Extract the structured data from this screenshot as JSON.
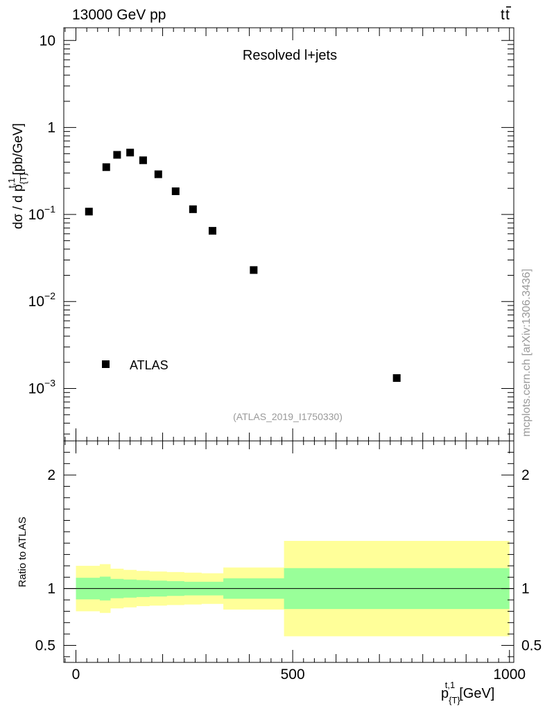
{
  "header": {
    "energy_label": "13000 GeV pp",
    "process_base": "t",
    "process_bar": "t"
  },
  "colors": {
    "band_outer": "#ffff99",
    "band_inner": "#99ff99",
    "marker": "#000000",
    "watermark": "#999999"
  },
  "chart_data": {
    "type": "scatter",
    "title": "Resolved l+jets",
    "analysis_id": "(ATLAS_2019_I1750330)",
    "side_text": "mcplots.cern.ch [arXiv:1306.3436]",
    "xlabel": {
      "base": "p",
      "sup": "t,1",
      "sub": "{T}",
      "unit": "[GeV]"
    },
    "ylabel": {
      "prefix": "dσ / d p",
      "sup": "t,1",
      "sub": "{T}",
      "unit": "[pb/GeV]"
    },
    "xlim": [
      -28,
      1010
    ],
    "x_ticks": [
      0,
      500,
      1000
    ],
    "x_tick_labels": [
      "0",
      "500",
      "1000"
    ],
    "main": {
      "yscale": "log",
      "ylim": [
        0.00025,
        14
      ],
      "y_ticks": [
        {
          "value": 10,
          "mantissa": "10",
          "exp": ""
        },
        {
          "value": 1,
          "mantissa": "1",
          "exp": ""
        },
        {
          "value": 0.1,
          "mantissa": "10",
          "exp": "−1"
        },
        {
          "value": 0.01,
          "mantissa": "10",
          "exp": "−2"
        },
        {
          "value": 0.001,
          "mantissa": "10",
          "exp": "−3"
        }
      ],
      "legend": {
        "entry": "ATLAS",
        "position": "bottom-left"
      },
      "series": [
        {
          "name": "ATLAS",
          "x": [
            30,
            70,
            95,
            125,
            155,
            190,
            230,
            270,
            315,
            410,
            740
          ],
          "y": [
            0.108,
            0.35,
            0.485,
            0.515,
            0.42,
            0.29,
            0.185,
            0.115,
            0.065,
            0.023,
            0.00132
          ]
        }
      ]
    },
    "ratio": {
      "ylabel": "Ratio to ATLAS",
      "ylim": [
        0.35,
        2.3
      ],
      "y_ticks": [
        0.5,
        1,
        2
      ],
      "y_tick_labels": [
        "0.5",
        "1",
        "2"
      ],
      "reference_line": 1,
      "bins": [
        {
          "lo": 0,
          "hi": 55,
          "inner": [
            0.905,
            1.095
          ],
          "outer": [
            0.8,
            1.2
          ]
        },
        {
          "lo": 55,
          "hi": 80,
          "inner": [
            0.895,
            1.105
          ],
          "outer": [
            0.785,
            1.215
          ]
        },
        {
          "lo": 80,
          "hi": 110,
          "inner": [
            0.915,
            1.085
          ],
          "outer": [
            0.825,
            1.175
          ]
        },
        {
          "lo": 110,
          "hi": 140,
          "inner": [
            0.92,
            1.08
          ],
          "outer": [
            0.835,
            1.165
          ]
        },
        {
          "lo": 140,
          "hi": 170,
          "inner": [
            0.925,
            1.075
          ],
          "outer": [
            0.845,
            1.155
          ]
        },
        {
          "lo": 170,
          "hi": 210,
          "inner": [
            0.93,
            1.07
          ],
          "outer": [
            0.85,
            1.15
          ]
        },
        {
          "lo": 210,
          "hi": 250,
          "inner": [
            0.935,
            1.065
          ],
          "outer": [
            0.855,
            1.145
          ]
        },
        {
          "lo": 250,
          "hi": 290,
          "inner": [
            0.94,
            1.06
          ],
          "outer": [
            0.86,
            1.14
          ]
        },
        {
          "lo": 290,
          "hi": 340,
          "inner": [
            0.94,
            1.06
          ],
          "outer": [
            0.865,
            1.135
          ]
        },
        {
          "lo": 340,
          "hi": 480,
          "inner": [
            0.91,
            1.09
          ],
          "outer": [
            0.815,
            1.185
          ]
        },
        {
          "lo": 480,
          "hi": 1000,
          "inner": [
            0.82,
            1.18
          ],
          "outer": [
            0.58,
            1.42
          ]
        }
      ]
    }
  }
}
